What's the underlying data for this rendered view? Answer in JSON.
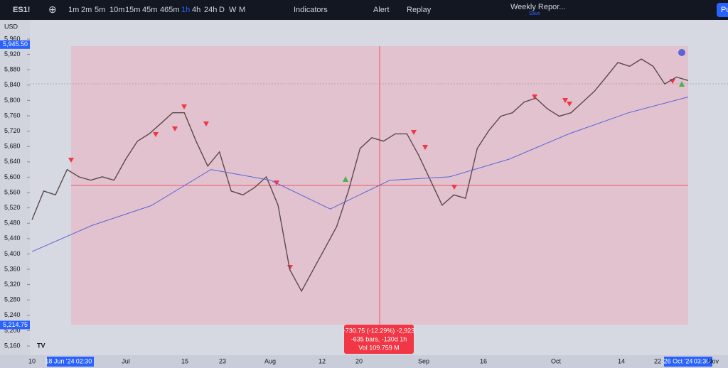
{
  "toolbar": {
    "symbol": "ES1!",
    "intervals": [
      "1m",
      "2m",
      "5m",
      "10m",
      "15m",
      "45m",
      "465m",
      "1h",
      "4h",
      "24h",
      "D",
      "W",
      "M"
    ],
    "indicators": "Indicators",
    "alert": "Alert",
    "replay": "Replay",
    "layout_name": "Weekly Repor...",
    "layout_status": "Save",
    "publish": "Pu"
  },
  "chart_data": {
    "type": "line",
    "currency": "USD",
    "series": [
      {
        "name": "ES1!",
        "color": "#5a4a4a",
        "values": [
          5489,
          5564,
          5554,
          5620,
          5601,
          5592,
          5601,
          5592,
          5647,
          5694,
          5713,
          5740,
          5768,
          5768,
          5694,
          5629,
          5666,
          5564,
          5554,
          5573,
          5601,
          5527,
          5359,
          5303,
          5359,
          5415,
          5471,
          5564,
          5675,
          5703,
          5694,
          5713,
          5713,
          5657,
          5592,
          5527,
          5554,
          5545,
          5675,
          5722,
          5759,
          5768,
          5796,
          5806,
          5778,
          5759,
          5768,
          5796,
          5824,
          5861,
          5899,
          5889,
          5908,
          5889,
          5843,
          5861,
          5852
        ]
      },
      {
        "name": "MA",
        "color": "#5b63d8",
        "values": [
          5406,
          5474,
          5526,
          5620,
          5592,
          5517,
          5592,
          5601,
          5647,
          5713,
          5768,
          5809
        ]
      }
    ],
    "ylim": [
      5136,
      6010
    ],
    "yticks": [
      {
        "value": 5160,
        "label": "5,160"
      },
      {
        "value": 5200,
        "label": "5,200"
      },
      {
        "value": 5240,
        "label": "5,240"
      },
      {
        "value": 5280,
        "label": "5,280"
      },
      {
        "value": 5320,
        "label": "5,320"
      },
      {
        "value": 5360,
        "label": "5,360"
      },
      {
        "value": 5400,
        "label": "5,400"
      },
      {
        "value": 5440,
        "label": "5,440"
      },
      {
        "value": 5480,
        "label": "5,480"
      },
      {
        "value": 5520,
        "label": "5,520"
      },
      {
        "value": 5560,
        "label": "5,560"
      },
      {
        "value": 5600,
        "label": "5,600"
      },
      {
        "value": 5640,
        "label": "5,640"
      },
      {
        "value": 5680,
        "label": "5,680"
      },
      {
        "value": 5720,
        "label": "5,720"
      },
      {
        "value": 5760,
        "label": "5,760"
      },
      {
        "value": 5800,
        "label": "5,800"
      },
      {
        "value": 5840,
        "label": "5,840"
      },
      {
        "value": 5880,
        "label": "5,880"
      },
      {
        "value": 5920,
        "label": "5,920"
      },
      {
        "value": 5960,
        "label": "5,960"
      }
    ],
    "price_marks": [
      {
        "value": 5945.5,
        "label": "5,945.50"
      },
      {
        "value": 5214.75,
        "label": "5,214.75"
      }
    ],
    "time_labels": [
      "10",
      "18 Jun '24",
      "02:30",
      "Jul",
      "15",
      "23",
      "Aug",
      "12",
      "20",
      "Sep",
      "16",
      "Oct",
      "14",
      "22",
      "26 Oct '24",
      "03:30",
      "Nov"
    ],
    "measure": [
      "-730.75 (-12.29%) -2,923",
      "-635 bars, -130d 1h",
      "Vol 109.759 M"
    ]
  }
}
